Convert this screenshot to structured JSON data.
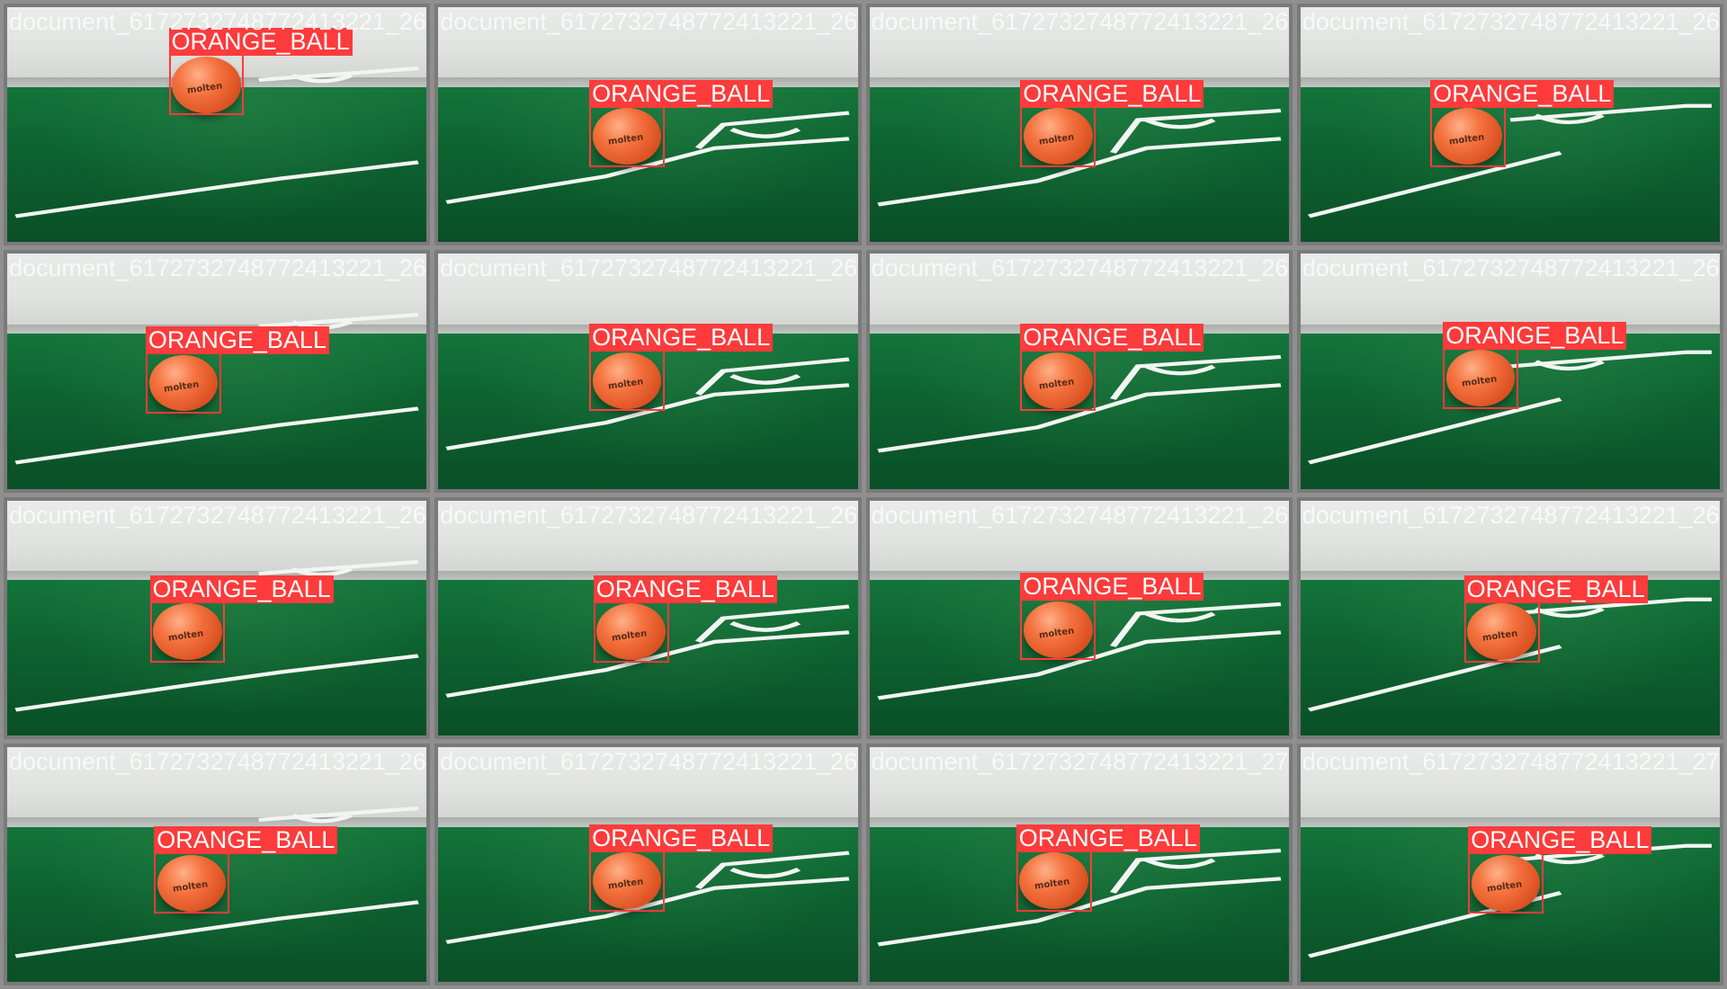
{
  "grid": {
    "rows": 4,
    "columns": 4,
    "tiles": [
      {
        "filename": "document_6172732748772413221_260.jpg",
        "label": "ORANGE_BALL"
      },
      {
        "filename": "document_6172732748772413221_263.jpg",
        "label": "ORANGE_BALL"
      },
      {
        "filename": "document_6172732748772413221_267.jpg",
        "label": "ORANGE_BALL"
      },
      {
        "filename": "document_6172732748772413221_268.jpg",
        "label": "ORANGE_BALL"
      },
      {
        "filename": "document_6172732748772413221_260.jpg",
        "label": "ORANGE_BALL"
      },
      {
        "filename": "document_6172732748772413221_264.jpg",
        "label": "ORANGE_BALL"
      },
      {
        "filename": "document_6172732748772413221_268.jpg",
        "label": "ORANGE_BALL"
      },
      {
        "filename": "document_6172732748772413221_269.jpg",
        "label": "ORANGE_BALL"
      },
      {
        "filename": "document_6172732748772413221_261.jpg",
        "label": "ORANGE_BALL"
      },
      {
        "filename": "document_6172732748772413221_265.jpg",
        "label": "ORANGE_BALL"
      },
      {
        "filename": "document_6172732748772413221_269.jpg",
        "label": "ORANGE_BALL"
      },
      {
        "filename": "document_6172732748772413221_262.jpg",
        "label": "ORANGE_BALL"
      },
      {
        "filename": "document_6172732748772413221_262.jpg",
        "label": "ORANGE_BALL"
      },
      {
        "filename": "document_6172732748772413221_266.jpg",
        "label": "ORANGE_BALL"
      },
      {
        "filename": "document_6172732748772413221_270.jpg",
        "label": "ORANGE_BALL"
      },
      {
        "filename": "document_6172732748772413221_270.jpg",
        "label": "ORANGE_BALL"
      }
    ]
  },
  "colors": {
    "bbox": "#ff3b3b",
    "ball": "#f4733f",
    "field": "#0f5a2c",
    "wall": "#e6e8e6"
  }
}
